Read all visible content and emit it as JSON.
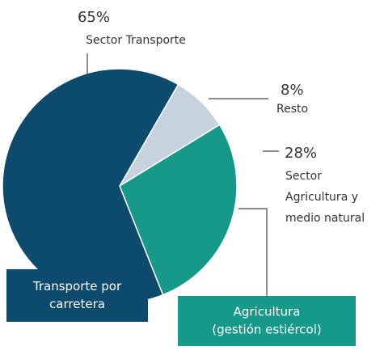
{
  "chart_data": {
    "type": "pie",
    "categories": [
      "Resto",
      "Sector Agricultura y medio natural",
      "Sector Transporte"
    ],
    "label_lines": [
      [
        "Resto"
      ],
      [
        "Sector",
        "Agricultura y",
        "medio natural"
      ],
      [
        "Sector Transporte"
      ]
    ],
    "values": [
      8,
      28,
      65
    ],
    "value_labels": [
      "8%",
      "28%",
      "65%"
    ],
    "colors": [
      "#c6d3de",
      "#17998a",
      "#0c4a6e"
    ],
    "annotations": [
      {
        "lines": [
          "Transporte por",
          "carretera"
        ],
        "color": "#0c4a6e"
      },
      {
        "lines": [
          "Agricultura",
          "(gestión estiércol)"
        ],
        "color": "#17998a"
      }
    ]
  }
}
